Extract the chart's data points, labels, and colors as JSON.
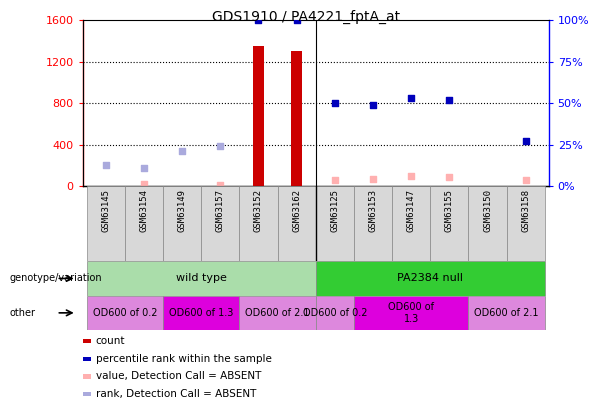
{
  "title": "GDS1910 / PA4221_fptA_at",
  "samples": [
    "GSM63145",
    "GSM63154",
    "GSM63149",
    "GSM63157",
    "GSM63152",
    "GSM63162",
    "GSM63125",
    "GSM63153",
    "GSM63147",
    "GSM63155",
    "GSM63150",
    "GSM63158"
  ],
  "n_samples": 12,
  "ylim_left": [
    0,
    1600
  ],
  "ylim_right": [
    0,
    100
  ],
  "yticks_left": [
    0,
    400,
    800,
    1200,
    1600
  ],
  "yticks_right": [
    0,
    25,
    50,
    75,
    100
  ],
  "count_values": [
    0,
    0,
    0,
    0,
    1350,
    1300,
    0,
    0,
    0,
    0,
    0,
    0
  ],
  "percentile_values_right": [
    0,
    0,
    0,
    0,
    100,
    100,
    50,
    49,
    53,
    52,
    0,
    27
  ],
  "value_absent_left": [
    0,
    20,
    0,
    15,
    0,
    0,
    60,
    70,
    95,
    90,
    0,
    60
  ],
  "rank_absent_left": [
    210,
    175,
    340,
    390,
    0,
    0,
    0,
    0,
    0,
    0,
    0,
    0
  ],
  "count_color": "#cc0000",
  "percentile_color": "#0000bb",
  "value_absent_color": "#ffb0b0",
  "rank_absent_color": "#aaaadd",
  "bar_width": 0.3,
  "genotype_groups": [
    {
      "label": "wild type",
      "start": 0,
      "end": 6,
      "color": "#aaddaa"
    },
    {
      "label": "PA2384 null",
      "start": 6,
      "end": 12,
      "color": "#33cc33"
    }
  ],
  "other_groups": [
    {
      "label": "OD600 of 0.2",
      "start": 0,
      "end": 2,
      "color": "#dd88dd"
    },
    {
      "label": "OD600 of 1.3",
      "start": 2,
      "end": 4,
      "color": "#dd00dd"
    },
    {
      "label": "OD600 of 2.1",
      "start": 4,
      "end": 6,
      "color": "#dd88dd"
    },
    {
      "label": "OD600 of 0.2",
      "start": 6,
      "end": 7,
      "color": "#dd88dd"
    },
    {
      "label": "OD600 of\n1.3",
      "start": 7,
      "end": 10,
      "color": "#dd00dd"
    },
    {
      "label": "OD600 of 2.1",
      "start": 10,
      "end": 12,
      "color": "#dd88dd"
    }
  ],
  "legend_items": [
    {
      "label": "count",
      "color": "#cc0000"
    },
    {
      "label": "percentile rank within the sample",
      "color": "#0000bb"
    },
    {
      "label": "value, Detection Call = ABSENT",
      "color": "#ffb0b0"
    },
    {
      "label": "rank, Detection Call = ABSENT",
      "color": "#aaaadd"
    }
  ],
  "fig_width": 6.13,
  "fig_height": 4.05,
  "dpi": 100
}
